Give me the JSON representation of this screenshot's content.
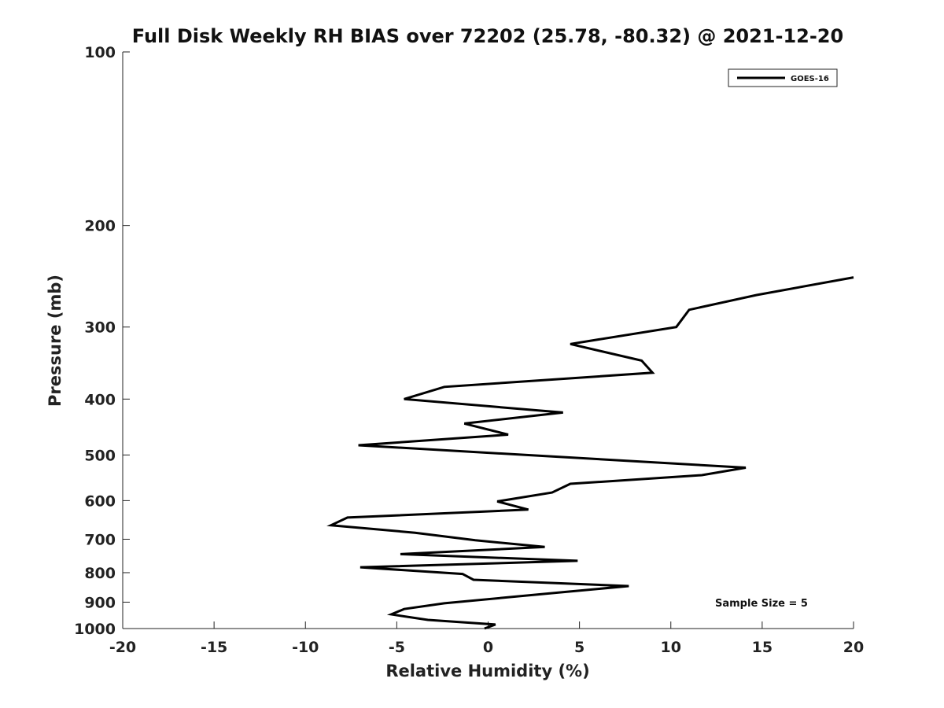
{
  "chart_data": {
    "type": "line",
    "title": "Full Disk Weekly RH BIAS over 72202 (25.78, -80.32) @ 2021-12-20",
    "xlabel": "Relative Humidity (%)",
    "ylabel": "Pressure (mb)",
    "xlim": [
      -20,
      20
    ],
    "ylim": [
      100,
      1000
    ],
    "y_scale": "log",
    "y_reversed": true,
    "x_ticks": [
      -20,
      -15,
      -10,
      -5,
      0,
      5,
      10,
      15,
      20
    ],
    "y_ticks": [
      100,
      200,
      300,
      400,
      500,
      600,
      700,
      800,
      900,
      1000
    ],
    "grid": false,
    "legend": {
      "position": "top-right",
      "entries": [
        "GOES-16"
      ]
    },
    "annotation": "Sample Size = 5",
    "color": "#000000",
    "series": [
      {
        "name": "GOES-16",
        "points": [
          [
            20.0,
            246
          ],
          [
            14.7,
            264
          ],
          [
            11.0,
            280
          ],
          [
            10.3,
            300
          ],
          [
            4.5,
            321
          ],
          [
            8.4,
            343
          ],
          [
            9.0,
            360
          ],
          [
            -2.4,
            381
          ],
          [
            -4.6,
            400
          ],
          [
            4.1,
            422
          ],
          [
            -1.3,
            441
          ],
          [
            1.1,
            461
          ],
          [
            -7.1,
            481
          ],
          [
            14.1,
            526
          ],
          [
            11.7,
            542
          ],
          [
            4.5,
            561
          ],
          [
            3.5,
            581
          ],
          [
            0.5,
            602
          ],
          [
            2.2,
            622
          ],
          [
            -7.7,
            642
          ],
          [
            -8.6,
            662
          ],
          [
            -4.0,
            682
          ],
          [
            -0.7,
            703
          ],
          [
            3.1,
            722
          ],
          [
            -4.8,
            743
          ],
          [
            4.9,
            763
          ],
          [
            -7.0,
            783
          ],
          [
            -1.4,
            804
          ],
          [
            -0.8,
            823
          ],
          [
            7.7,
            844
          ],
          [
            4.2,
            864
          ],
          [
            -2.4,
            904
          ],
          [
            -4.6,
            925
          ],
          [
            -5.3,
            945
          ],
          [
            -3.3,
            966
          ],
          [
            0.4,
            984
          ],
          [
            -0.2,
            1000
          ]
        ]
      }
    ]
  }
}
